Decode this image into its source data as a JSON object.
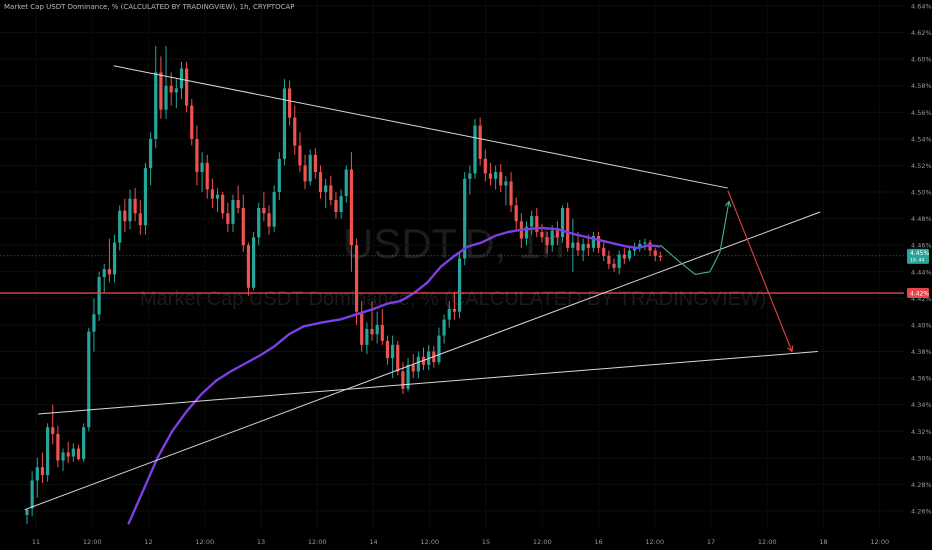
{
  "header": {
    "title": "Market Cap USDT Dominance, % (CALCULATED BY TRADINGVIEW), 1h, CRYPTOCAP"
  },
  "watermark": {
    "symbol": "USDT.D, 1h",
    "description": "Market Cap USDT Dominance, % (CALCULATED BY TRADINGVIEW)"
  },
  "colors": {
    "background": "#000000",
    "up": "#26a69a",
    "down": "#ef5350",
    "ma": "#7b3fe4",
    "trendline": "#d9d9d9",
    "projection_up": "#4caf80",
    "projection_down": "#e0463c",
    "horizontal_line": "#e8444a",
    "price_label": "#26a69a",
    "level_label": "#e8444a"
  },
  "chart_data": {
    "type": "candlestick",
    "symbol": "USDT.D",
    "timeframe": "1h",
    "ylim": [
      4.25,
      4.64
    ],
    "y_ticks": [
      "4.26%",
      "4.28%",
      "4.30%",
      "4.32%",
      "4.34%",
      "4.36%",
      "4.38%",
      "4.40%",
      "4.42%",
      "4.44%",
      "4.46%",
      "4.48%",
      "4.50%",
      "4.52%",
      "4.54%",
      "4.56%",
      "4.58%",
      "4.60%",
      "4.62%",
      "4.64%"
    ],
    "x_ticks": [
      "11",
      "12:00",
      "12",
      "12:00",
      "13",
      "12:00",
      "14",
      "12:00",
      "15",
      "12:00",
      "16",
      "12:00",
      "17",
      "12:00",
      "18",
      "12:00"
    ],
    "current_price_label": "4.45%",
    "current_price_sub": "19, 44",
    "level_label": "4.42%",
    "current_price": 4.452,
    "horizontal_level": 4.424,
    "candles": [
      {
        "o": 4.257,
        "h": 4.262,
        "l": 4.25,
        "c": 4.261
      },
      {
        "o": 4.262,
        "h": 4.29,
        "l": 4.256,
        "c": 4.283
      },
      {
        "o": 4.283,
        "h": 4.3,
        "l": 4.27,
        "c": 4.293
      },
      {
        "o": 4.293,
        "h": 4.304,
        "l": 4.281,
        "c": 4.287
      },
      {
        "o": 4.287,
        "h": 4.326,
        "l": 4.282,
        "c": 4.323
      },
      {
        "o": 4.323,
        "h": 4.34,
        "l": 4.31,
        "c": 4.318
      },
      {
        "o": 4.318,
        "h": 4.324,
        "l": 4.293,
        "c": 4.298
      },
      {
        "o": 4.298,
        "h": 4.307,
        "l": 4.29,
        "c": 4.304
      },
      {
        "o": 4.304,
        "h": 4.312,
        "l": 4.296,
        "c": 4.301
      },
      {
        "o": 4.301,
        "h": 4.311,
        "l": 4.297,
        "c": 4.307
      },
      {
        "o": 4.307,
        "h": 4.31,
        "l": 4.298,
        "c": 4.299
      },
      {
        "o": 4.299,
        "h": 4.326,
        "l": 4.297,
        "c": 4.323
      },
      {
        "o": 4.323,
        "h": 4.398,
        "l": 4.32,
        "c": 4.395
      },
      {
        "o": 4.395,
        "h": 4.42,
        "l": 4.38,
        "c": 4.408
      },
      {
        "o": 4.408,
        "h": 4.44,
        "l": 4.403,
        "c": 4.436
      },
      {
        "o": 4.436,
        "h": 4.446,
        "l": 4.424,
        "c": 4.442
      },
      {
        "o": 4.442,
        "h": 4.465,
        "l": 4.432,
        "c": 4.438
      },
      {
        "o": 4.438,
        "h": 4.468,
        "l": 4.432,
        "c": 4.462
      },
      {
        "o": 4.462,
        "h": 4.49,
        "l": 4.456,
        "c": 4.486
      },
      {
        "o": 4.486,
        "h": 4.495,
        "l": 4.47,
        "c": 4.478
      },
      {
        "o": 4.478,
        "h": 4.502,
        "l": 4.472,
        "c": 4.495
      },
      {
        "o": 4.495,
        "h": 4.503,
        "l": 4.478,
        "c": 4.484
      },
      {
        "o": 4.484,
        "h": 4.494,
        "l": 4.468,
        "c": 4.475
      },
      {
        "o": 4.475,
        "h": 4.522,
        "l": 4.468,
        "c": 4.518
      },
      {
        "o": 4.518,
        "h": 4.545,
        "l": 4.505,
        "c": 4.54
      },
      {
        "o": 4.54,
        "h": 4.61,
        "l": 4.533,
        "c": 4.59
      },
      {
        "o": 4.59,
        "h": 4.602,
        "l": 4.555,
        "c": 4.562
      },
      {
        "o": 4.562,
        "h": 4.61,
        "l": 4.555,
        "c": 4.58
      },
      {
        "o": 4.58,
        "h": 4.59,
        "l": 4.565,
        "c": 4.575
      },
      {
        "o": 4.575,
        "h": 4.585,
        "l": 4.563,
        "c": 4.578
      },
      {
        "o": 4.578,
        "h": 4.598,
        "l": 4.57,
        "c": 4.593
      },
      {
        "o": 4.593,
        "h": 4.598,
        "l": 4.56,
        "c": 4.565
      },
      {
        "o": 4.565,
        "h": 4.57,
        "l": 4.535,
        "c": 4.54
      },
      {
        "o": 4.54,
        "h": 4.55,
        "l": 4.505,
        "c": 4.515
      },
      {
        "o": 4.515,
        "h": 4.53,
        "l": 4.5,
        "c": 4.522
      },
      {
        "o": 4.522,
        "h": 4.528,
        "l": 4.495,
        "c": 4.502
      },
      {
        "o": 4.502,
        "h": 4.51,
        "l": 4.488,
        "c": 4.495
      },
      {
        "o": 4.495,
        "h": 4.503,
        "l": 4.485,
        "c": 4.498
      },
      {
        "o": 4.498,
        "h": 4.5,
        "l": 4.48,
        "c": 4.484
      },
      {
        "o": 4.484,
        "h": 4.492,
        "l": 4.47,
        "c": 4.476
      },
      {
        "o": 4.476,
        "h": 4.498,
        "l": 4.47,
        "c": 4.494
      },
      {
        "o": 4.494,
        "h": 4.505,
        "l": 4.484,
        "c": 4.488
      },
      {
        "o": 4.488,
        "h": 4.498,
        "l": 4.455,
        "c": 4.46
      },
      {
        "o": 4.46,
        "h": 4.462,
        "l": 4.422,
        "c": 4.428
      },
      {
        "o": 4.428,
        "h": 4.47,
        "l": 4.426,
        "c": 4.466
      },
      {
        "o": 4.466,
        "h": 4.492,
        "l": 4.46,
        "c": 4.488
      },
      {
        "o": 4.488,
        "h": 4.5,
        "l": 4.478,
        "c": 4.484
      },
      {
        "o": 4.484,
        "h": 4.49,
        "l": 4.468,
        "c": 4.474
      },
      {
        "o": 4.474,
        "h": 4.505,
        "l": 4.47,
        "c": 4.5
      },
      {
        "o": 4.5,
        "h": 4.53,
        "l": 4.494,
        "c": 4.525
      },
      {
        "o": 4.525,
        "h": 4.585,
        "l": 4.52,
        "c": 4.578
      },
      {
        "o": 4.578,
        "h": 4.584,
        "l": 4.55,
        "c": 4.556
      },
      {
        "o": 4.556,
        "h": 4.565,
        "l": 4.528,
        "c": 4.535
      },
      {
        "o": 4.535,
        "h": 4.545,
        "l": 4.515,
        "c": 4.52
      },
      {
        "o": 4.52,
        "h": 4.528,
        "l": 4.502,
        "c": 4.508
      },
      {
        "o": 4.508,
        "h": 4.532,
        "l": 4.505,
        "c": 4.528
      },
      {
        "o": 4.528,
        "h": 4.533,
        "l": 4.51,
        "c": 4.515
      },
      {
        "o": 4.515,
        "h": 4.52,
        "l": 4.495,
        "c": 4.5
      },
      {
        "o": 4.5,
        "h": 4.51,
        "l": 4.488,
        "c": 4.505
      },
      {
        "o": 4.505,
        "h": 4.512,
        "l": 4.49,
        "c": 4.494
      },
      {
        "o": 4.494,
        "h": 4.5,
        "l": 4.48,
        "c": 4.485
      },
      {
        "o": 4.485,
        "h": 4.502,
        "l": 4.48,
        "c": 4.497
      },
      {
        "o": 4.497,
        "h": 4.52,
        "l": 4.492,
        "c": 4.517
      },
      {
        "o": 4.517,
        "h": 4.53,
        "l": 4.44,
        "c": 4.46
      },
      {
        "o": 4.46,
        "h": 4.465,
        "l": 4.4,
        "c": 4.41
      },
      {
        "o": 4.41,
        "h": 4.418,
        "l": 4.38,
        "c": 4.385
      },
      {
        "o": 4.385,
        "h": 4.402,
        "l": 4.378,
        "c": 4.397
      },
      {
        "o": 4.397,
        "h": 4.418,
        "l": 4.388,
        "c": 4.393
      },
      {
        "o": 4.393,
        "h": 4.41,
        "l": 4.386,
        "c": 4.4
      },
      {
        "o": 4.4,
        "h": 4.412,
        "l": 4.385,
        "c": 4.388
      },
      {
        "o": 4.388,
        "h": 4.392,
        "l": 4.37,
        "c": 4.375
      },
      {
        "o": 4.375,
        "h": 4.392,
        "l": 4.36,
        "c": 4.385
      },
      {
        "o": 4.385,
        "h": 4.388,
        "l": 4.362,
        "c": 4.365
      },
      {
        "o": 4.365,
        "h": 4.372,
        "l": 4.348,
        "c": 4.352
      },
      {
        "o": 4.352,
        "h": 4.375,
        "l": 4.35,
        "c": 4.37
      },
      {
        "o": 4.37,
        "h": 4.378,
        "l": 4.36,
        "c": 4.365
      },
      {
        "o": 4.365,
        "h": 4.38,
        "l": 4.36,
        "c": 4.376
      },
      {
        "o": 4.376,
        "h": 4.383,
        "l": 4.366,
        "c": 4.37
      },
      {
        "o": 4.37,
        "h": 4.385,
        "l": 4.366,
        "c": 4.38
      },
      {
        "o": 4.38,
        "h": 4.384,
        "l": 4.368,
        "c": 4.372
      },
      {
        "o": 4.372,
        "h": 4.398,
        "l": 4.37,
        "c": 4.392
      },
      {
        "o": 4.392,
        "h": 4.408,
        "l": 4.386,
        "c": 4.404
      },
      {
        "o": 4.404,
        "h": 4.418,
        "l": 4.398,
        "c": 4.412
      },
      {
        "o": 4.412,
        "h": 4.425,
        "l": 4.404,
        "c": 4.41
      },
      {
        "o": 4.41,
        "h": 4.455,
        "l": 4.405,
        "c": 4.45
      },
      {
        "o": 4.45,
        "h": 4.515,
        "l": 4.445,
        "c": 4.51
      },
      {
        "o": 4.51,
        "h": 4.52,
        "l": 4.498,
        "c": 4.514
      },
      {
        "o": 4.514,
        "h": 4.555,
        "l": 4.51,
        "c": 4.55
      },
      {
        "o": 4.55,
        "h": 4.556,
        "l": 4.52,
        "c": 4.525
      },
      {
        "o": 4.525,
        "h": 4.532,
        "l": 4.508,
        "c": 4.514
      },
      {
        "o": 4.514,
        "h": 4.522,
        "l": 4.505,
        "c": 4.51
      },
      {
        "o": 4.51,
        "h": 4.52,
        "l": 4.502,
        "c": 4.515
      },
      {
        "o": 4.515,
        "h": 4.521,
        "l": 4.5,
        "c": 4.505
      },
      {
        "o": 4.505,
        "h": 4.512,
        "l": 4.49,
        "c": 4.508
      },
      {
        "o": 4.508,
        "h": 4.515,
        "l": 4.485,
        "c": 4.49
      },
      {
        "o": 4.49,
        "h": 4.496,
        "l": 4.472,
        "c": 4.478
      },
      {
        "o": 4.478,
        "h": 4.484,
        "l": 4.458,
        "c": 4.465
      },
      {
        "o": 4.465,
        "h": 4.478,
        "l": 4.46,
        "c": 4.474
      },
      {
        "o": 4.474,
        "h": 4.486,
        "l": 4.468,
        "c": 4.482
      },
      {
        "o": 4.482,
        "h": 4.488,
        "l": 4.466,
        "c": 4.47
      },
      {
        "o": 4.47,
        "h": 4.476,
        "l": 4.462,
        "c": 4.466
      },
      {
        "o": 4.466,
        "h": 4.47,
        "l": 4.454,
        "c": 4.46
      },
      {
        "o": 4.46,
        "h": 4.475,
        "l": 4.455,
        "c": 4.471
      },
      {
        "o": 4.471,
        "h": 4.478,
        "l": 4.46,
        "c": 4.466
      },
      {
        "o": 4.466,
        "h": 4.49,
        "l": 4.462,
        "c": 4.488
      },
      {
        "o": 4.488,
        "h": 4.492,
        "l": 4.455,
        "c": 4.458
      },
      {
        "o": 4.458,
        "h": 4.48,
        "l": 4.44,
        "c": 4.462
      },
      {
        "o": 4.462,
        "h": 4.47,
        "l": 4.452,
        "c": 4.456
      },
      {
        "o": 4.456,
        "h": 4.465,
        "l": 4.448,
        "c": 4.461
      },
      {
        "o": 4.461,
        "h": 4.468,
        "l": 4.452,
        "c": 4.458
      },
      {
        "o": 4.458,
        "h": 4.47,
        "l": 4.455,
        "c": 4.467
      },
      {
        "o": 4.467,
        "h": 4.47,
        "l": 4.454,
        "c": 4.458
      },
      {
        "o": 4.458,
        "h": 4.462,
        "l": 4.448,
        "c": 4.452
      },
      {
        "o": 4.452,
        "h": 4.456,
        "l": 4.442,
        "c": 4.446
      },
      {
        "o": 4.446,
        "h": 4.45,
        "l": 4.44,
        "c": 4.443
      },
      {
        "o": 4.443,
        "h": 4.456,
        "l": 4.438,
        "c": 4.453
      },
      {
        "o": 4.453,
        "h": 4.458,
        "l": 4.446,
        "c": 4.45
      },
      {
        "o": 4.45,
        "h": 4.458,
        "l": 4.448,
        "c": 4.456
      },
      {
        "o": 4.456,
        "h": 4.462,
        "l": 4.452,
        "c": 4.459
      },
      {
        "o": 4.459,
        "h": 4.464,
        "l": 4.455,
        "c": 4.461
      },
      {
        "o": 4.461,
        "h": 4.465,
        "l": 4.456,
        "c": 4.462
      },
      {
        "o": 4.462,
        "h": 4.464,
        "l": 4.452,
        "c": 4.456
      },
      {
        "o": 4.456,
        "h": 4.458,
        "l": 4.448,
        "c": 4.452
      },
      {
        "o": 4.452,
        "h": 4.455,
        "l": 4.448,
        "c": 4.451
      }
    ],
    "moving_average": [
      [
        11.82,
        4.25
      ],
      [
        11.95,
        4.275
      ],
      [
        12.08,
        4.3
      ],
      [
        12.21,
        4.32
      ],
      [
        12.34,
        4.335
      ],
      [
        12.47,
        4.348
      ],
      [
        12.6,
        4.358
      ],
      [
        12.73,
        4.365
      ],
      [
        12.86,
        4.371
      ],
      [
        12.99,
        4.377
      ],
      [
        13.12,
        4.384
      ],
      [
        13.25,
        4.393
      ],
      [
        13.38,
        4.399
      ],
      [
        13.55,
        4.402
      ],
      [
        13.7,
        4.404
      ],
      [
        13.85,
        4.408
      ],
      [
        14.0,
        4.412
      ],
      [
        14.12,
        4.416
      ],
      [
        14.24,
        4.418
      ],
      [
        14.36,
        4.424
      ],
      [
        14.48,
        4.432
      ],
      [
        14.6,
        4.444
      ],
      [
        14.72,
        4.452
      ],
      [
        14.84,
        4.459
      ],
      [
        14.96,
        4.462
      ],
      [
        15.08,
        4.467
      ],
      [
        15.2,
        4.47
      ],
      [
        15.34,
        4.472
      ],
      [
        15.5,
        4.473
      ],
      [
        15.64,
        4.472
      ],
      [
        15.8,
        4.468
      ],
      [
        15.95,
        4.465
      ],
      [
        16.1,
        4.462
      ],
      [
        16.25,
        4.459
      ],
      [
        16.35,
        4.458
      ],
      [
        16.45,
        4.46
      ],
      [
        16.55,
        4.459
      ]
    ],
    "trendlines": [
      {
        "name": "descending resistance",
        "points": [
          [
            11.69,
            4.595
          ],
          [
            17.15,
            4.503
          ]
        ]
      },
      {
        "name": "ascending support",
        "points": [
          [
            10.9,
            4.261
          ],
          [
            17.97,
            4.485
          ]
        ]
      },
      {
        "name": "lower channel line",
        "points": [
          [
            11.02,
            4.333
          ],
          [
            17.95,
            4.38
          ]
        ]
      }
    ],
    "projection": {
      "up_path": [
        [
          16.55,
          4.46
        ],
        [
          16.7,
          4.449
        ],
        [
          16.86,
          4.438
        ],
        [
          16.99,
          4.44
        ],
        [
          17.08,
          4.455
        ],
        [
          17.16,
          4.493
        ]
      ],
      "down_path": [
        [
          17.15,
          4.501
        ],
        [
          17.72,
          4.38
        ]
      ]
    }
  }
}
